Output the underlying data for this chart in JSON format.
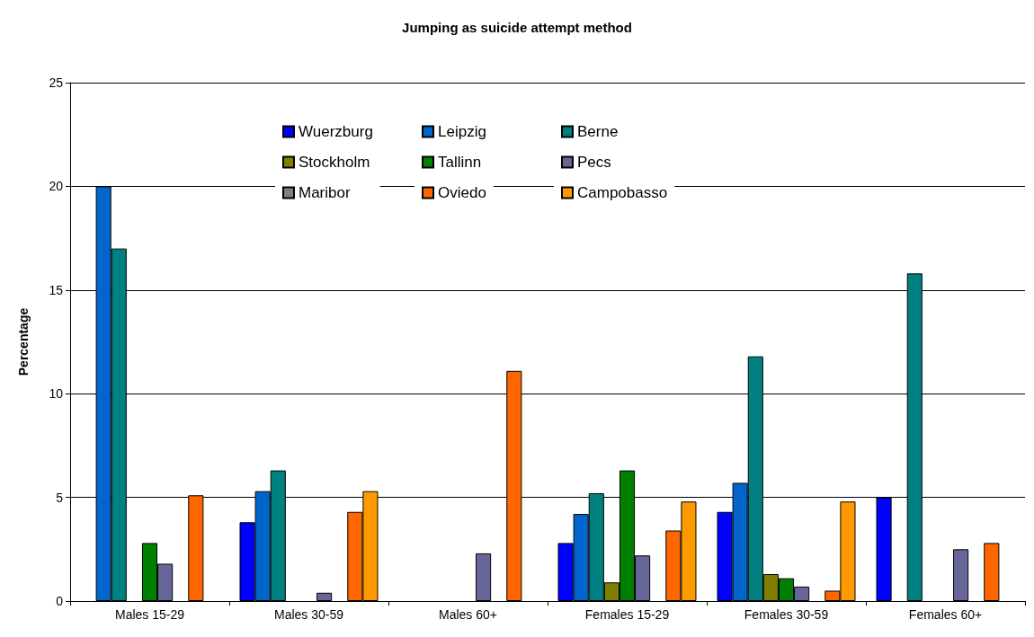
{
  "chart_data": {
    "type": "bar",
    "title": "Jumping as suicide attempt method",
    "ylabel": "Percentage",
    "categories": [
      "Males 15-29",
      "Males 30-59",
      "Males 60+",
      "Females 15-29",
      "Females 30-59",
      "Females 60+"
    ],
    "series": [
      {
        "name": "Wuerzburg",
        "color": "#0000ff",
        "values": [
          null,
          3.8,
          null,
          2.8,
          4.3,
          5.0
        ]
      },
      {
        "name": "Leipzig",
        "color": "#0066cc",
        "values": [
          20,
          5.3,
          null,
          4.2,
          5.7,
          null
        ]
      },
      {
        "name": "Berne",
        "color": "#008080",
        "values": [
          17,
          6.3,
          null,
          5.2,
          11.8,
          15.8
        ]
      },
      {
        "name": "Stockholm",
        "color": "#808000",
        "values": [
          null,
          null,
          null,
          0.9,
          1.3,
          null
        ]
      },
      {
        "name": "Tallinn",
        "color": "#008000",
        "values": [
          2.8,
          null,
          null,
          6.3,
          1.1,
          null
        ]
      },
      {
        "name": "Pecs",
        "color": "#666699",
        "values": [
          1.8,
          0.4,
          2.3,
          2.2,
          0.7,
          2.5
        ]
      },
      {
        "name": "Maribor",
        "color": "#808080",
        "values": [
          null,
          null,
          null,
          null,
          null,
          null
        ]
      },
      {
        "name": "Oviedo",
        "color": "#ff6600",
        "values": [
          5.1,
          4.3,
          11.1,
          3.4,
          0.5,
          2.8
        ]
      },
      {
        "name": "Campobasso",
        "color": "#ff9900",
        "values": [
          null,
          5.3,
          null,
          4.8,
          4.8,
          null
        ]
      }
    ],
    "ylim": [
      0,
      25
    ],
    "yticks": [
      0,
      5,
      10,
      15,
      20,
      25
    ],
    "grid": "y",
    "legend": "top"
  }
}
